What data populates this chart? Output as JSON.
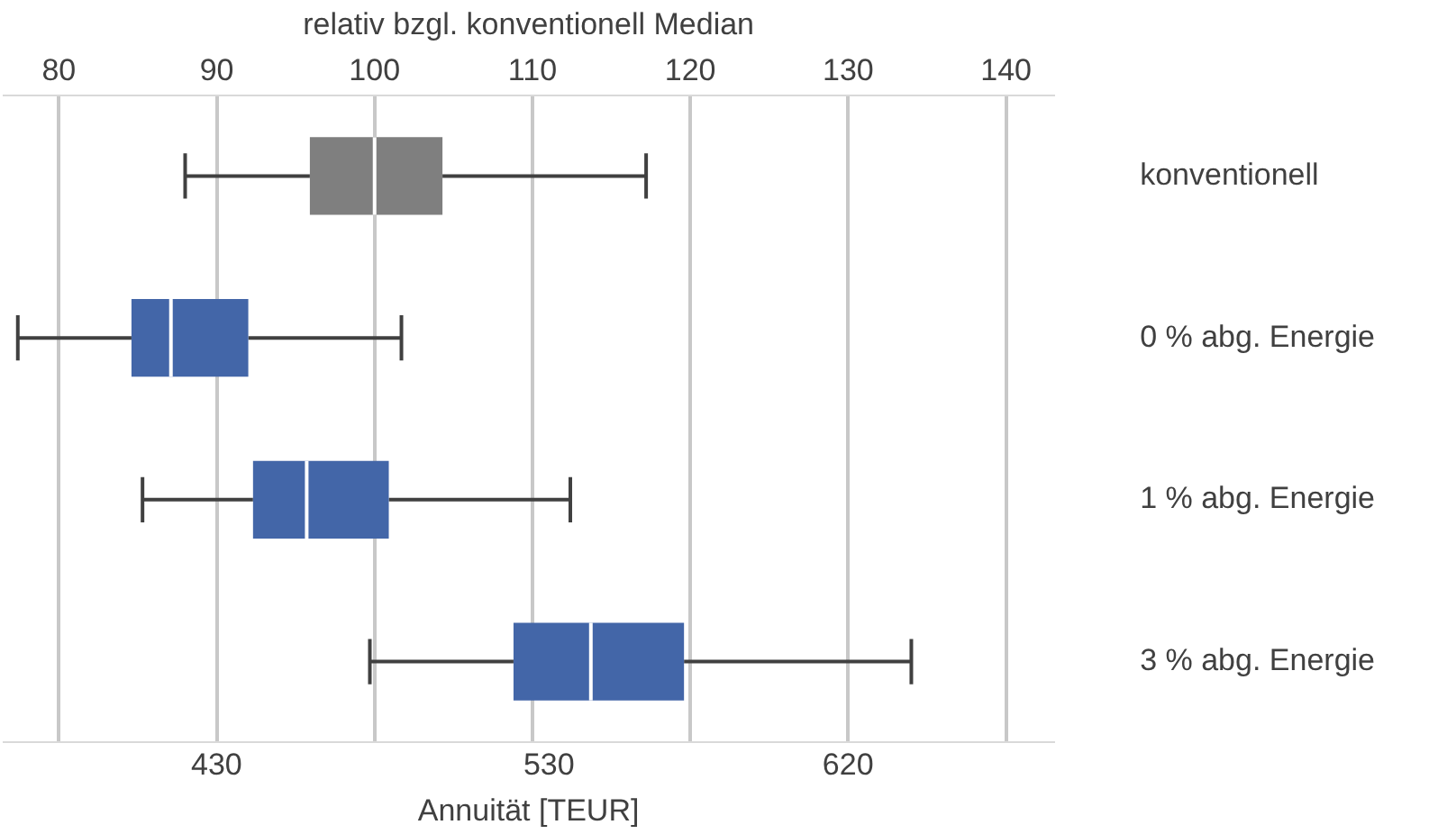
{
  "chart_data": {
    "type": "box",
    "orientation": "horizontal",
    "categories": [
      "konventionell",
      "0 % abg. Energie",
      "1 % abg. Energie",
      "3 % abg. Energie"
    ],
    "series": [
      {
        "axis": "x2",
        "colors": [
          "#7f7f7f",
          "#4366a8",
          "#4366a8",
          "#4366a8"
        ],
        "boxes": [
          {
            "low": 88.0,
            "q1": 95.9,
            "median": 100,
            "q3": 104.3,
            "high": 117.2
          },
          {
            "low": 77.4,
            "q1": 84.6,
            "median": 87.1,
            "q3": 92.0,
            "high": 101.7
          },
          {
            "low": 85.3,
            "q1": 92.3,
            "median": 95.7,
            "q3": 100.9,
            "high": 112.4
          },
          {
            "low": 99.7,
            "q1": 108.8,
            "median": 113.7,
            "q3": 119.6,
            "high": 134.0
          }
        ]
      }
    ],
    "xlabel": "Annuität [TEUR]",
    "x2label": "relativ bzgl. konventionell Median",
    "xlim": [
      365.9,
      681.8
    ],
    "xticks": [
      430,
      530,
      620
    ],
    "x2lim": [
      76.5,
      143
    ],
    "x2ticks": [
      80,
      90,
      100,
      110,
      120,
      130,
      140
    ],
    "grid": "x",
    "legend": false
  }
}
